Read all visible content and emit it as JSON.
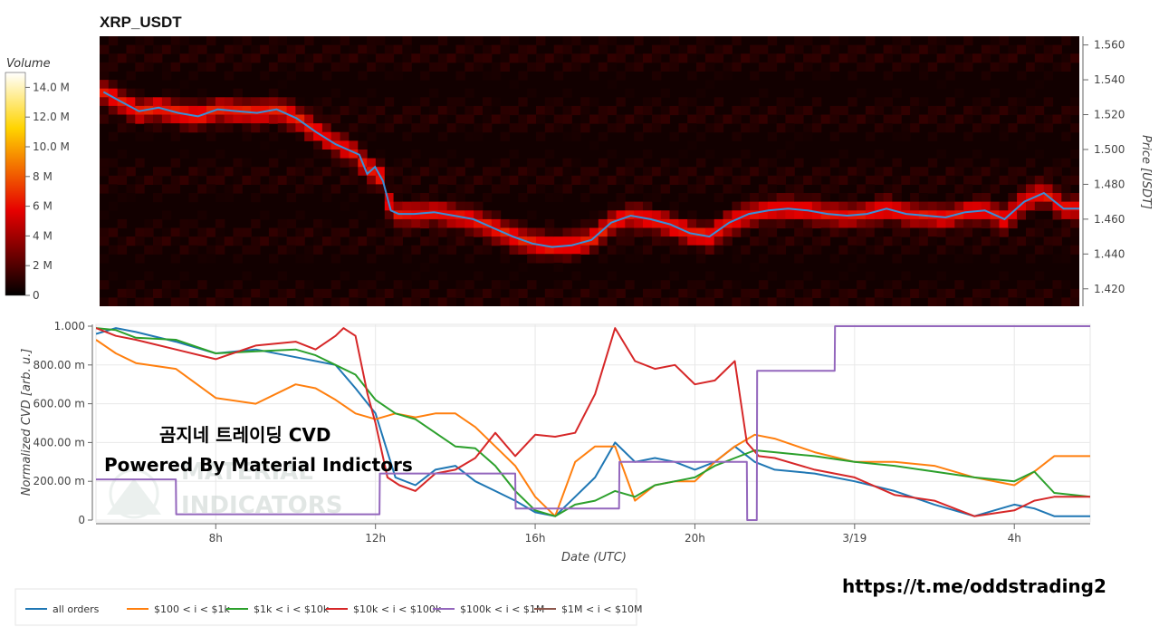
{
  "chart_data": [
    {
      "type": "heatmap",
      "title": "XRP_USDT",
      "ylabel": "Price [USDT]",
      "ylim": [
        1.41,
        1.565
      ],
      "yticks": [
        "1.420",
        "1.440",
        "1.460",
        "1.480",
        "1.500",
        "1.520",
        "1.540",
        "1.560"
      ],
      "colorbar": {
        "title": "Volume",
        "ticks": [
          "0",
          "2 M",
          "4 M",
          "6 M",
          "8 M",
          "10.0 M",
          "12.0 M",
          "14.0 M"
        ],
        "range": [
          0,
          15
        ]
      },
      "price_series": {
        "x": [
          5.1,
          5.5,
          6,
          6.5,
          7,
          7.5,
          8,
          8.5,
          9,
          9.5,
          10,
          10.5,
          11,
          11.3,
          11.6,
          11.8,
          12,
          12.2,
          12.4,
          12.6,
          13,
          13.5,
          14,
          14.5,
          15,
          15.5,
          16,
          16.5,
          17,
          17.5,
          18,
          18.5,
          19,
          19.5,
          20,
          20.5,
          21,
          21.5,
          22,
          22.5,
          23,
          23.5,
          24,
          24.5,
          25,
          25.5,
          26,
          26.5,
          27,
          27.5,
          28,
          28.5,
          29,
          29.5,
          29.9
        ],
        "y": [
          1.533,
          1.528,
          1.522,
          1.524,
          1.521,
          1.519,
          1.523,
          1.522,
          1.521,
          1.523,
          1.518,
          1.51,
          1.503,
          1.5,
          1.497,
          1.486,
          1.49,
          1.482,
          1.465,
          1.463,
          1.463,
          1.464,
          1.462,
          1.46,
          1.455,
          1.45,
          1.446,
          1.444,
          1.445,
          1.448,
          1.458,
          1.462,
          1.46,
          1.457,
          1.452,
          1.45,
          1.458,
          1.463,
          1.465,
          1.466,
          1.465,
          1.463,
          1.462,
          1.463,
          1.466,
          1.463,
          1.462,
          1.461,
          1.464,
          1.465,
          1.46,
          1.47,
          1.475,
          1.466,
          1.466
        ]
      }
    },
    {
      "type": "line",
      "xlabel": "Date (UTC)",
      "ylabel": "Normalized CVD [arb. u.]",
      "ylim": [
        0,
        1.0
      ],
      "xlim": [
        5,
        29.9
      ],
      "xticks": [
        {
          "x": 8,
          "label": "8h"
        },
        {
          "x": 12,
          "label": "12h"
        },
        {
          "x": 16,
          "label": "16h"
        },
        {
          "x": 20,
          "label": "20h"
        },
        {
          "x": 24,
          "label": "3/19"
        },
        {
          "x": 28,
          "label": "4h"
        }
      ],
      "yticks": [
        {
          "v": 0,
          "label": "0"
        },
        {
          "v": 0.2,
          "label": "200.00 m"
        },
        {
          "v": 0.4,
          "label": "400.00 m"
        },
        {
          "v": 0.6,
          "label": "600.00 m"
        },
        {
          "v": 0.8,
          "label": "800.00 m"
        },
        {
          "v": 1.0,
          "label": "1.000"
        }
      ],
      "series": [
        {
          "name": "all orders",
          "color": "#1f77b4",
          "x": [
            5,
            5.5,
            6,
            7,
            8,
            9,
            10,
            10.5,
            11,
            11.5,
            12,
            12.5,
            13,
            13.5,
            14,
            14.5,
            15,
            15.5,
            16,
            16.5,
            17,
            17.5,
            18,
            18.5,
            19,
            19.5,
            20,
            20.5,
            21,
            21.5,
            22,
            23,
            24,
            25,
            26,
            27,
            28,
            28.5,
            29,
            29.9
          ],
          "y": [
            0.96,
            0.99,
            0.97,
            0.92,
            0.86,
            0.88,
            0.84,
            0.82,
            0.8,
            0.68,
            0.55,
            0.22,
            0.18,
            0.26,
            0.28,
            0.2,
            0.15,
            0.1,
            0.04,
            0.02,
            0.12,
            0.22,
            0.4,
            0.3,
            0.32,
            0.3,
            0.26,
            0.3,
            0.38,
            0.3,
            0.26,
            0.24,
            0.2,
            0.15,
            0.08,
            0.02,
            0.08,
            0.06,
            0.02,
            0.02
          ]
        },
        {
          "name": "$100 < i < $1k",
          "color": "#ff7f0e",
          "x": [
            5,
            5.5,
            6,
            7,
            8,
            9,
            10,
            10.5,
            11,
            11.5,
            12,
            12.5,
            13,
            13.5,
            14,
            14.5,
            15,
            15.5,
            16,
            16.5,
            17,
            17.5,
            18,
            18.5,
            19,
            19.5,
            20,
            20.5,
            21,
            21.5,
            22,
            23,
            24,
            25,
            26,
            27,
            28,
            28.5,
            29,
            29.9
          ],
          "y": [
            0.93,
            0.86,
            0.81,
            0.78,
            0.63,
            0.6,
            0.7,
            0.68,
            0.62,
            0.55,
            0.52,
            0.55,
            0.53,
            0.55,
            0.55,
            0.48,
            0.38,
            0.28,
            0.12,
            0.02,
            0.3,
            0.38,
            0.38,
            0.1,
            0.18,
            0.2,
            0.2,
            0.3,
            0.38,
            0.44,
            0.42,
            0.35,
            0.3,
            0.3,
            0.28,
            0.22,
            0.18,
            0.25,
            0.33,
            0.33
          ]
        },
        {
          "name": "$1k < i < $10k",
          "color": "#2ca02c",
          "x": [
            5,
            5.5,
            6,
            7,
            8,
            9,
            10,
            10.5,
            11,
            11.5,
            12,
            12.5,
            13,
            13.5,
            14,
            14.5,
            15,
            15.5,
            16,
            16.5,
            17,
            17.5,
            18,
            18.5,
            19,
            19.5,
            20,
            20.5,
            21,
            21.5,
            22,
            23,
            24,
            25,
            26,
            27,
            28,
            28.5,
            29,
            29.9
          ],
          "y": [
            0.99,
            0.98,
            0.94,
            0.93,
            0.86,
            0.87,
            0.88,
            0.85,
            0.8,
            0.75,
            0.62,
            0.55,
            0.52,
            0.45,
            0.38,
            0.37,
            0.28,
            0.15,
            0.05,
            0.02,
            0.08,
            0.1,
            0.15,
            0.12,
            0.18,
            0.2,
            0.22,
            0.28,
            0.32,
            0.36,
            0.35,
            0.33,
            0.3,
            0.28,
            0.25,
            0.22,
            0.2,
            0.25,
            0.14,
            0.12
          ]
        },
        {
          "name": "$10k < i < $100k",
          "color": "#d62728",
          "x": [
            5,
            5.5,
            6,
            7,
            8,
            9,
            10,
            10.5,
            11,
            11.2,
            11.5,
            11.8,
            12,
            12.3,
            12.6,
            13,
            13.5,
            14,
            14.5,
            15,
            15.5,
            16,
            16.5,
            17,
            17.5,
            18,
            18.5,
            19,
            19.5,
            20,
            20.5,
            21,
            21.3,
            21.6,
            22,
            23,
            24,
            25,
            26,
            27,
            28,
            28.5,
            29,
            29.9
          ],
          "y": [
            0.99,
            0.95,
            0.93,
            0.88,
            0.83,
            0.9,
            0.92,
            0.88,
            0.95,
            0.99,
            0.95,
            0.65,
            0.5,
            0.22,
            0.18,
            0.15,
            0.24,
            0.26,
            0.32,
            0.45,
            0.33,
            0.44,
            0.43,
            0.45,
            0.65,
            0.99,
            0.82,
            0.78,
            0.8,
            0.7,
            0.72,
            0.82,
            0.4,
            0.33,
            0.32,
            0.26,
            0.22,
            0.13,
            0.1,
            0.02,
            0.05,
            0.1,
            0.12,
            0.12
          ]
        },
        {
          "name": "$100k < i < $1M",
          "color": "#9467bd",
          "x": [
            5,
            7,
            7.01,
            12.1,
            12.11,
            15.5,
            15.51,
            18.1,
            18.11,
            21.3,
            21.31,
            21.55,
            21.56,
            23.5,
            23.51,
            29.9
          ],
          "y": [
            0.21,
            0.21,
            0.03,
            0.03,
            0.24,
            0.24,
            0.06,
            0.06,
            0.3,
            0.3,
            0.0,
            0.0,
            0.77,
            0.77,
            1.0,
            1.0
          ]
        },
        {
          "name": "$1M < i < $10M",
          "color": "#8c564b",
          "x": [],
          "y": []
        }
      ]
    }
  ],
  "overlay": {
    "line1": "곰지네 트레이딩 CVD",
    "line2": "Powered By Material Indictors",
    "watermark_1": "MATERIAL",
    "watermark_2": "INDICATORS"
  },
  "url": "https://t.me/oddstrading2"
}
